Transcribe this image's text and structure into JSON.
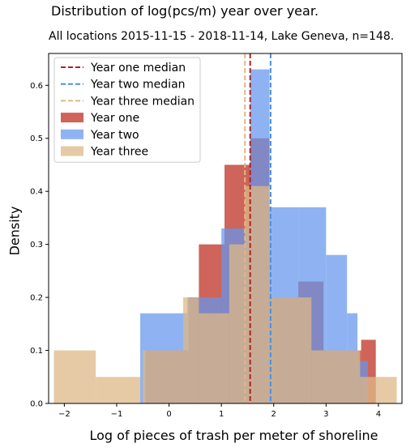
{
  "chart_data": {
    "type": "bar",
    "title": "Distribution of log(pcs/m) year over year.",
    "subtitle": "All locations 2015-11-15 - 2018-11-14, Lake Geneva, n=148.",
    "xlabel": "Log of pieces of trash per meter of shoreline",
    "ylabel": "Density",
    "xlim": [
      -2.3,
      4.45
    ],
    "ylim": [
      0,
      0.66
    ],
    "xticks": [
      -2,
      -1,
      0,
      1,
      2,
      3,
      4
    ],
    "yticks": [
      0.0,
      0.1,
      0.2,
      0.3,
      0.4,
      0.5,
      0.6
    ],
    "legend_position": "top-left",
    "series": [
      {
        "name": "Year one",
        "color": "#c0392b",
        "opacity": 0.78,
        "bins": [
          {
            "x0": -0.45,
            "x1": 0.37,
            "density": 0.1
          },
          {
            "x0": 0.37,
            "x1": 0.57,
            "density": 0.2
          },
          {
            "x0": 0.57,
            "x1": 1.06,
            "density": 0.3
          },
          {
            "x0": 1.06,
            "x1": 1.55,
            "density": 0.45
          },
          {
            "x0": 1.55,
            "x1": 1.92,
            "density": 0.5
          },
          {
            "x0": 1.92,
            "x1": 2.47,
            "density": 0.2
          },
          {
            "x0": 2.47,
            "x1": 2.95,
            "density": 0.23
          },
          {
            "x0": 2.95,
            "x1": 3.67,
            "density": 0.1
          },
          {
            "x0": 3.67,
            "x1": 3.95,
            "density": 0.12
          },
          {
            "x0": 3.95,
            "x1": 4.05,
            "density": 0.0
          }
        ]
      },
      {
        "name": "Year two",
        "color": "#6495ed",
        "opacity": 0.72,
        "bins": [
          {
            "x0": -0.55,
            "x1": 0.35,
            "density": 0.17
          },
          {
            "x0": 0.35,
            "x1": 1.0,
            "density": 0.2
          },
          {
            "x0": 1.0,
            "x1": 1.55,
            "density": 0.33
          },
          {
            "x0": 1.55,
            "x1": 1.92,
            "density": 0.63
          },
          {
            "x0": 1.92,
            "x1": 2.47,
            "density": 0.37
          },
          {
            "x0": 2.47,
            "x1": 3.0,
            "density": 0.37
          },
          {
            "x0": 3.0,
            "x1": 3.4,
            "density": 0.28
          },
          {
            "x0": 3.4,
            "x1": 3.6,
            "density": 0.17
          },
          {
            "x0": 3.6,
            "x1": 3.8,
            "density": 0.08
          }
        ]
      },
      {
        "name": "Year three",
        "color": "#deb887",
        "opacity": 0.75,
        "bins": [
          {
            "x0": -2.2,
            "x1": -1.4,
            "density": 0.1
          },
          {
            "x0": -1.4,
            "x1": -0.55,
            "density": 0.05
          },
          {
            "x0": -0.5,
            "x1": 0.27,
            "density": 0.1
          },
          {
            "x0": 0.27,
            "x1": 0.57,
            "density": 0.2
          },
          {
            "x0": 0.57,
            "x1": 1.15,
            "density": 0.17
          },
          {
            "x0": 1.15,
            "x1": 1.45,
            "density": 0.3
          },
          {
            "x0": 1.45,
            "x1": 1.92,
            "density": 0.41
          },
          {
            "x0": 1.92,
            "x1": 2.72,
            "density": 0.2
          },
          {
            "x0": 2.72,
            "x1": 3.65,
            "density": 0.1
          },
          {
            "x0": 3.65,
            "x1": 3.95,
            "density": 0.05
          },
          {
            "x0": 3.95,
            "x1": 4.35,
            "density": 0.05
          }
        ]
      }
    ],
    "medians": [
      {
        "name": "Year one median",
        "x": 1.55,
        "color": "#b22222"
      },
      {
        "name": "Year two median",
        "x": 1.94,
        "color": "#4a90e2"
      },
      {
        "name": "Year three median",
        "x": 1.45,
        "color": "#deb887"
      }
    ]
  }
}
